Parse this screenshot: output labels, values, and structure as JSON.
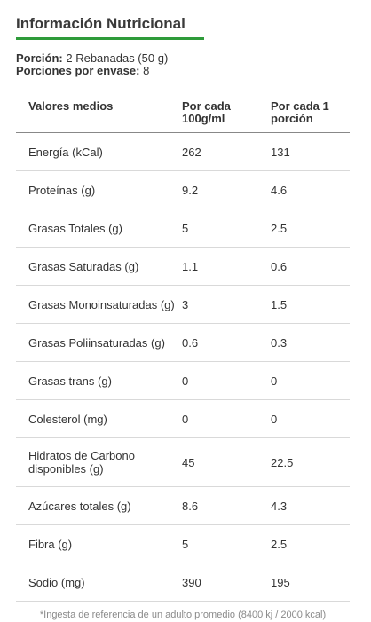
{
  "header": {
    "title": "Información Nutricional"
  },
  "serving": {
    "portion_label": "Porción:",
    "portion_value": "2 Rebanadas (50 g)",
    "per_package_label": "Porciones por envase:",
    "per_package_value": "8"
  },
  "table": {
    "columns": [
      "Valores medios",
      "Por cada 100g/ml",
      "Por cada 1 porción"
    ],
    "rows": [
      {
        "nutrient": "Energía (kCal)",
        "per_100": "262",
        "per_portion": "131"
      },
      {
        "nutrient": "Proteínas (g)",
        "per_100": "9.2",
        "per_portion": "4.6"
      },
      {
        "nutrient": "Grasas Totales (g)",
        "per_100": "5",
        "per_portion": "2.5"
      },
      {
        "nutrient": "Grasas Saturadas (g)",
        "per_100": "1.1",
        "per_portion": "0.6"
      },
      {
        "nutrient": "Grasas Monoinsaturadas (g)",
        "per_100": "3",
        "per_portion": "1.5"
      },
      {
        "nutrient": "Grasas Poliinsaturadas (g)",
        "per_100": "0.6",
        "per_portion": "0.3"
      },
      {
        "nutrient": "Grasas trans (g)",
        "per_100": "0",
        "per_portion": "0"
      },
      {
        "nutrient": "Colesterol (mg)",
        "per_100": "0",
        "per_portion": "0"
      },
      {
        "nutrient": "Hidratos de Carbono disponibles (g)",
        "per_100": "45",
        "per_portion": "22.5"
      },
      {
        "nutrient": "Azúcares totales (g)",
        "per_100": "8.6",
        "per_portion": "4.3"
      },
      {
        "nutrient": "Fibra (g)",
        "per_100": "5",
        "per_portion": "2.5"
      },
      {
        "nutrient": "Sodio (mg)",
        "per_100": "390",
        "per_portion": "195"
      }
    ]
  },
  "footnote": "*Ingesta de referencia de un adulto promedio (8400 kj / 2000 kcal)",
  "colors": {
    "accent": "#2e9b3a",
    "text": "#333333",
    "muted": "#8a8a8a"
  }
}
